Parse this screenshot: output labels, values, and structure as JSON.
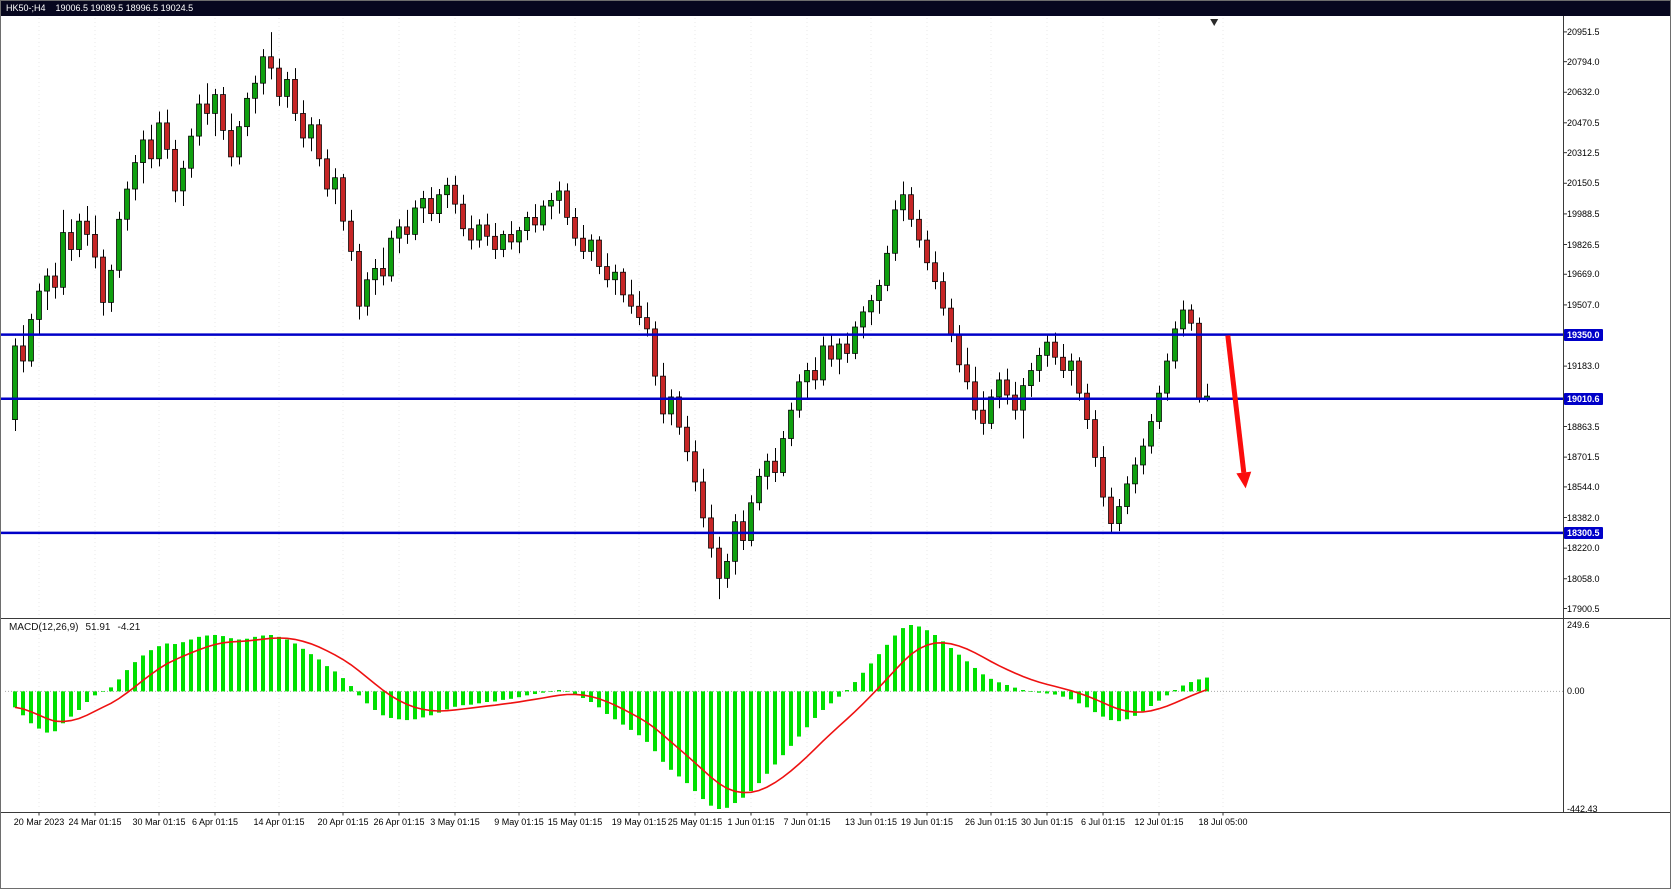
{
  "window": {
    "titlebar": {
      "symbol_period": "HK50-;H4",
      "ohlc": "19006.5 19089.5 18996.5 19024.5"
    }
  },
  "colors": {
    "titlebar_bg": "#07071f",
    "bull": "#0fa00f",
    "bear": "#c62525",
    "wick": "#000000",
    "hline": "#0000c8",
    "macd_hist": "#00e000",
    "signal": "#ee1111",
    "arrow": "#fb0d0d",
    "grid": "#e8e8e8",
    "panel_border": "#3a3a3a"
  },
  "chart_data": [
    {
      "type": "candlestick",
      "title": "HK50-;H4",
      "ohlc_display": {
        "open": 19006.5,
        "high": 19089.5,
        "low": 18996.5,
        "close": 19024.5
      },
      "ylim": [
        17845,
        21025
      ],
      "y_ticks": [
        "20951.5",
        "20794.0",
        "20632.0",
        "20470.5",
        "20312.5",
        "20150.5",
        "19988.5",
        "19826.5",
        "19669.0",
        "19507.0",
        "19183.0",
        "18863.5",
        "18701.5",
        "18544.0",
        "18382.0",
        "18220.0",
        "18058.0",
        "17900.5"
      ],
      "x_labels": [
        "20 Mar 2023",
        "24 Mar 01:15",
        "30 Mar 01:15",
        "6 Apr 01:15",
        "14 Apr 01:15",
        "20 Apr 01:15",
        "26 Apr 01:15",
        "3 May 01:15",
        "9 May 01:15",
        "15 May 01:15",
        "19 May 01:15",
        "25 May 01:15",
        "1 Jun 01:15",
        "7 Jun 01:15",
        "13 Jun 01:15",
        "19 Jun 01:15",
        "26 Jun 01:15",
        "30 Jun 01:15",
        "6 Jul 01:15",
        "12 Jul 01:15",
        "18 Jul 05:00"
      ],
      "x_label_indices": [
        3,
        10,
        18,
        25,
        33,
        41,
        48,
        55,
        63,
        70,
        78,
        85,
        92,
        99,
        107,
        114,
        122,
        129,
        136,
        143,
        151
      ],
      "horizontal_lines": [
        {
          "price": 19350.0,
          "label": "19350.0"
        },
        {
          "price": 19010.6,
          "label": "19010.6"
        },
        {
          "price": 18300.5,
          "label": "18300.5"
        }
      ],
      "arrow_annotation": {
        "from": {
          "index": 151.6,
          "price": 19345
        },
        "to": {
          "index": 153.6,
          "price": 18620
        },
        "head_length": 16,
        "head_width": 15,
        "line_width": 5
      },
      "candles_ohlc": [
        [
          18900,
          19330,
          18840,
          19290
        ],
        [
          19290,
          19400,
          19150,
          19210
        ],
        [
          19210,
          19460,
          19180,
          19430
        ],
        [
          19430,
          19620,
          19350,
          19580
        ],
        [
          19580,
          19700,
          19480,
          19660
        ],
        [
          19660,
          19730,
          19540,
          19600
        ],
        [
          19600,
          20010,
          19560,
          19890
        ],
        [
          19890,
          19960,
          19740,
          19800
        ],
        [
          19800,
          19990,
          19760,
          19950
        ],
        [
          19950,
          20030,
          19820,
          19880
        ],
        [
          19880,
          19980,
          19700,
          19760
        ],
        [
          19760,
          19800,
          19450,
          19520
        ],
        [
          19520,
          19720,
          19470,
          19690
        ],
        [
          19690,
          20000,
          19650,
          19960
        ],
        [
          19960,
          20160,
          19900,
          20120
        ],
        [
          20120,
          20300,
          20060,
          20260
        ],
        [
          20260,
          20430,
          20150,
          20380
        ],
        [
          20380,
          20460,
          20230,
          20280
        ],
        [
          20280,
          20530,
          20240,
          20470
        ],
        [
          20470,
          20540,
          20280,
          20330
        ],
        [
          20330,
          20380,
          20050,
          20110
        ],
        [
          20110,
          20270,
          20030,
          20230
        ],
        [
          20230,
          20440,
          20180,
          20400
        ],
        [
          20400,
          20620,
          20350,
          20570
        ],
        [
          20570,
          20680,
          20460,
          20520
        ],
        [
          20520,
          20650,
          20400,
          20620
        ],
        [
          20620,
          20660,
          20380,
          20430
        ],
        [
          20430,
          20520,
          20240,
          20290
        ],
        [
          20290,
          20480,
          20250,
          20450
        ],
        [
          20450,
          20630,
          20400,
          20600
        ],
        [
          20600,
          20720,
          20520,
          20680
        ],
        [
          20680,
          20860,
          20620,
          20820
        ],
        [
          20820,
          20950,
          20700,
          20760
        ],
        [
          20760,
          20810,
          20560,
          20610
        ],
        [
          20610,
          20740,
          20550,
          20700
        ],
        [
          20700,
          20760,
          20480,
          20520
        ],
        [
          20520,
          20590,
          20340,
          20390
        ],
        [
          20390,
          20500,
          20320,
          20460
        ],
        [
          20460,
          20490,
          20240,
          20280
        ],
        [
          20280,
          20330,
          20080,
          20120
        ],
        [
          20120,
          20230,
          20040,
          20180
        ],
        [
          20180,
          20200,
          19900,
          19950
        ],
        [
          19950,
          20010,
          19740,
          19790
        ],
        [
          19790,
          19830,
          19430,
          19500
        ],
        [
          19500,
          19680,
          19450,
          19640
        ],
        [
          19640,
          19750,
          19560,
          19700
        ],
        [
          19700,
          19810,
          19610,
          19660
        ],
        [
          19660,
          19900,
          19630,
          19860
        ],
        [
          19860,
          19960,
          19780,
          19920
        ],
        [
          19920,
          20010,
          19830,
          19880
        ],
        [
          19880,
          20060,
          19850,
          20020
        ],
        [
          20020,
          20110,
          19940,
          20070
        ],
        [
          20070,
          20130,
          19950,
          19990
        ],
        [
          19990,
          20120,
          19940,
          20090
        ],
        [
          20090,
          20180,
          20020,
          20140
        ],
        [
          20140,
          20190,
          19990,
          20040
        ],
        [
          20040,
          20090,
          19870,
          19910
        ],
        [
          19910,
          19980,
          19800,
          19850
        ],
        [
          19850,
          19960,
          19810,
          19930
        ],
        [
          19930,
          19990,
          19820,
          19870
        ],
        [
          19870,
          19940,
          19750,
          19800
        ],
        [
          19800,
          19900,
          19760,
          19880
        ],
        [
          19880,
          19950,
          19800,
          19840
        ],
        [
          19840,
          19920,
          19780,
          19900
        ],
        [
          19900,
          20000,
          19850,
          19970
        ],
        [
          19970,
          20040,
          19890,
          19930
        ],
        [
          19930,
          20060,
          19900,
          20030
        ],
        [
          20030,
          20100,
          19960,
          20060
        ],
        [
          20060,
          20160,
          19990,
          20110
        ],
        [
          20110,
          20150,
          19930,
          19970
        ],
        [
          19970,
          20020,
          19820,
          19860
        ],
        [
          19860,
          19930,
          19750,
          19790
        ],
        [
          19790,
          19880,
          19740,
          19850
        ],
        [
          19850,
          19870,
          19670,
          19710
        ],
        [
          19710,
          19780,
          19600,
          19640
        ],
        [
          19640,
          19720,
          19560,
          19680
        ],
        [
          19680,
          19700,
          19520,
          19560
        ],
        [
          19560,
          19640,
          19460,
          19500
        ],
        [
          19500,
          19580,
          19400,
          19440
        ],
        [
          19440,
          19520,
          19340,
          19380
        ],
        [
          19380,
          19420,
          19080,
          19130
        ],
        [
          19130,
          19200,
          18880,
          18930
        ],
        [
          18930,
          19060,
          18870,
          19020
        ],
        [
          19020,
          19050,
          18820,
          18860
        ],
        [
          18860,
          18920,
          18680,
          18730
        ],
        [
          18730,
          18790,
          18520,
          18570
        ],
        [
          18570,
          18640,
          18330,
          18380
        ],
        [
          18380,
          18450,
          18170,
          18220
        ],
        [
          18220,
          18280,
          17950,
          18060
        ],
        [
          18060,
          18190,
          18010,
          18150
        ],
        [
          18150,
          18400,
          18080,
          18360
        ],
        [
          18360,
          18420,
          18210,
          18260
        ],
        [
          18260,
          18500,
          18230,
          18460
        ],
        [
          18460,
          18640,
          18420,
          18600
        ],
        [
          18600,
          18720,
          18530,
          18680
        ],
        [
          18680,
          18750,
          18570,
          18620
        ],
        [
          18620,
          18840,
          18600,
          18800
        ],
        [
          18800,
          18990,
          18760,
          18950
        ],
        [
          18950,
          19140,
          18910,
          19100
        ],
        [
          19100,
          19200,
          19010,
          19160
        ],
        [
          19160,
          19230,
          19060,
          19110
        ],
        [
          19110,
          19340,
          19080,
          19290
        ],
        [
          19290,
          19350,
          19180,
          19220
        ],
        [
          19220,
          19330,
          19140,
          19300
        ],
        [
          19300,
          19360,
          19200,
          19250
        ],
        [
          19250,
          19420,
          19220,
          19390
        ],
        [
          19390,
          19500,
          19330,
          19470
        ],
        [
          19470,
          19560,
          19400,
          19530
        ],
        [
          19530,
          19640,
          19460,
          19610
        ],
        [
          19610,
          19820,
          19580,
          19780
        ],
        [
          19780,
          20060,
          19740,
          20010
        ],
        [
          20010,
          20160,
          19950,
          20090
        ],
        [
          20090,
          20130,
          19920,
          19960
        ],
        [
          19960,
          20010,
          19810,
          19850
        ],
        [
          19850,
          19900,
          19690,
          19730
        ],
        [
          19730,
          19790,
          19590,
          19630
        ],
        [
          19630,
          19680,
          19450,
          19490
        ],
        [
          19490,
          19540,
          19310,
          19350
        ],
        [
          19350,
          19400,
          19150,
          19190
        ],
        [
          19190,
          19280,
          19060,
          19100
        ],
        [
          19100,
          19180,
          18900,
          18950
        ],
        [
          18950,
          19050,
          18820,
          18880
        ],
        [
          18880,
          19060,
          18850,
          19020
        ],
        [
          19020,
          19150,
          18960,
          19110
        ],
        [
          19110,
          19170,
          18980,
          19030
        ],
        [
          19030,
          19100,
          18900,
          18950
        ],
        [
          18950,
          19120,
          18800,
          19080
        ],
        [
          19080,
          19200,
          19020,
          19160
        ],
        [
          19160,
          19280,
          19100,
          19240
        ],
        [
          19240,
          19350,
          19180,
          19310
        ],
        [
          19310,
          19360,
          19190,
          19230
        ],
        [
          19230,
          19300,
          19120,
          19160
        ],
        [
          19160,
          19250,
          19080,
          19210
        ],
        [
          19210,
          19230,
          19000,
          19040
        ],
        [
          19040,
          19090,
          18850,
          18900
        ],
        [
          18900,
          18950,
          18650,
          18700
        ],
        [
          18700,
          18760,
          18440,
          18490
        ],
        [
          18490,
          18540,
          18300,
          18350
        ],
        [
          18350,
          18480,
          18310,
          18440
        ],
        [
          18440,
          18600,
          18400,
          18560
        ],
        [
          18560,
          18700,
          18510,
          18660
        ],
        [
          18660,
          18800,
          18610,
          18760
        ],
        [
          18760,
          18930,
          18720,
          18890
        ],
        [
          18890,
          19080,
          18850,
          19040
        ],
        [
          19040,
          19250,
          19000,
          19210
        ],
        [
          19210,
          19420,
          19170,
          19380
        ],
        [
          19380,
          19530,
          19340,
          19480
        ],
        [
          19480,
          19510,
          19370,
          19410
        ],
        [
          19410,
          19440,
          18990,
          19010
        ],
        [
          19006.5,
          19089.5,
          18996.5,
          19024.5
        ]
      ]
    },
    {
      "type": "bar",
      "title": "MACD(12,26,9)",
      "current_values": {
        "macd": "51.91",
        "signal": "-4.21"
      },
      "y_axis_labels": [
        "249.6",
        "0.00",
        "-442.43"
      ],
      "ylim": [
        -442.43,
        249.6
      ],
      "signal_period": 9,
      "macd_histogram": [
        -60,
        -90,
        -120,
        -140,
        -155,
        -150,
        -120,
        -95,
        -70,
        -40,
        -15,
        0,
        15,
        45,
        80,
        110,
        135,
        155,
        170,
        180,
        178,
        185,
        195,
        205,
        210,
        212,
        208,
        200,
        195,
        198,
        205,
        210,
        212,
        205,
        195,
        180,
        160,
        140,
        120,
        95,
        75,
        50,
        20,
        -15,
        -45,
        -70,
        -90,
        -100,
        -105,
        -108,
        -105,
        -98,
        -90,
        -80,
        -68,
        -58,
        -52,
        -50,
        -45,
        -40,
        -38,
        -32,
        -28,
        -22,
        -15,
        -10,
        -5,
        0,
        5,
        0,
        -10,
        -25,
        -40,
        -60,
        -85,
        -105,
        -125,
        -145,
        -165,
        -190,
        -225,
        -265,
        -295,
        -320,
        -345,
        -375,
        -405,
        -430,
        -442.43,
        -438,
        -420,
        -400,
        -375,
        -345,
        -310,
        -275,
        -240,
        -205,
        -170,
        -135,
        -100,
        -70,
        -45,
        -20,
        5,
        35,
        70,
        105,
        140,
        175,
        210,
        238,
        249.6,
        244,
        230,
        212,
        188,
        163,
        138,
        113,
        88,
        64,
        47,
        34,
        24,
        14,
        5,
        0,
        -5,
        -8,
        -12,
        -20,
        -30,
        -45,
        -60,
        -78,
        -95,
        -108,
        -112,
        -105,
        -92,
        -75,
        -55,
        -35,
        -15,
        5,
        22,
        35,
        45,
        51.91
      ]
    }
  ]
}
